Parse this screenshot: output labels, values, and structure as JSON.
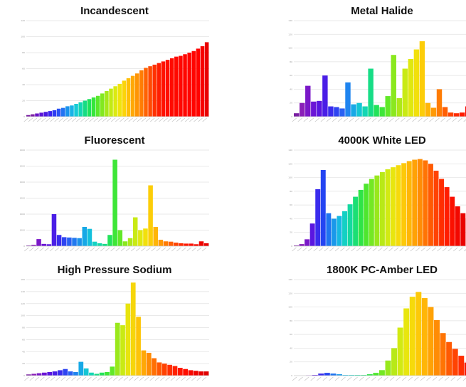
{
  "chart_data": [
    {
      "type": "bar",
      "title": "Incandescent",
      "xlabel": "",
      "ylabel": "",
      "ylim": [
        0,
        120
      ],
      "yticks": [
        "0",
        "20",
        "40",
        "60",
        "80",
        "100",
        "120"
      ],
      "values": [
        2,
        3,
        4,
        5,
        6,
        7,
        8,
        10,
        11,
        13,
        14,
        16,
        18,
        20,
        22,
        24,
        26,
        29,
        32,
        35,
        38,
        41,
        45,
        48,
        51,
        54,
        58,
        61,
        63,
        65,
        67,
        69,
        71,
        73,
        75,
        76,
        78,
        80,
        82,
        85,
        88,
        93
      ],
      "colors": [
        "#7a1fa2",
        "#7a1fa2",
        "#6a12c6",
        "#5a14d6",
        "#4a18e0",
        "#3a24ee",
        "#2e3cf2",
        "#2a52f4",
        "#2373f2",
        "#1a94ec",
        "#17b3e6",
        "#15cbd6",
        "#14d6b3",
        "#16dc84",
        "#1ee35c",
        "#35e63c",
        "#5ae82a",
        "#82e81f",
        "#a6e81a",
        "#c3ea14",
        "#dbea10",
        "#f0e30c",
        "#fbd40a",
        "#ffbf08",
        "#ffa806",
        "#ff9405",
        "#ff7d04",
        "#ff6203",
        "#ff4a02",
        "#ff3201",
        "#ff1e01",
        "#ff1200",
        "#ff0e00",
        "#ff0a00",
        "#ff0800",
        "#ff0700",
        "#ff0600",
        "#ff0500",
        "#ff0400",
        "#ff0300",
        "#f70200",
        "#e80000"
      ],
      "grid": true
    },
    {
      "type": "bar",
      "title": "Metal Halide",
      "xlabel": "",
      "ylabel": "",
      "ylim": [
        0,
        140
      ],
      "yticks": [
        "0",
        "20",
        "40",
        "60",
        "80",
        "100",
        "120",
        "140"
      ],
      "values": [
        5,
        20,
        45,
        22,
        23,
        60,
        15,
        14,
        12,
        50,
        18,
        20,
        15,
        70,
        17,
        14,
        30,
        90,
        27,
        70,
        84,
        98,
        110,
        20,
        13,
        40,
        14,
        6,
        5,
        6,
        15,
        5
      ],
      "colors": [
        "#7a1fa2",
        "#8a1fb8",
        "#7a18c8",
        "#6a14d6",
        "#5a16e0",
        "#4a1ee6",
        "#3a2ced",
        "#2e44f1",
        "#2860f2",
        "#1f84ef",
        "#17a8e6",
        "#14c6d4",
        "#14d6b4",
        "#17dd86",
        "#23e35a",
        "#3ee638",
        "#62e828",
        "#8ae81e",
        "#aee819",
        "#c9ea14",
        "#e0e810",
        "#f2e00c",
        "#fccd09",
        "#ffb507",
        "#ff9905",
        "#ff7c04",
        "#ff5f03",
        "#ff4402",
        "#ff2c01",
        "#ff1a00",
        "#f70c00",
        "#e80000"
      ],
      "grid": true
    },
    {
      "type": "bar",
      "title": "Fluorescent",
      "xlabel": "",
      "ylabel": "",
      "ylim": [
        0,
        30000
      ],
      "yticks": [
        "0",
        "5000",
        "10000",
        "15000",
        "20000",
        "25000",
        "30000"
      ],
      "values": [
        200,
        400,
        2200,
        700,
        600,
        10000,
        3500,
        2800,
        2700,
        2600,
        2500,
        6000,
        5400,
        1400,
        900,
        700,
        3500,
        27000,
        5000,
        1500,
        2500,
        9000,
        5000,
        5500,
        19000,
        6000,
        2000,
        1500,
        1400,
        1100,
        900,
        800,
        800,
        600,
        1500,
        900
      ],
      "colors": [
        "#7a1fa2",
        "#8a1fb8",
        "#7a18c8",
        "#6a14d6",
        "#5a16e0",
        "#4a1ee6",
        "#3a2ced",
        "#2e44f1",
        "#2860f2",
        "#2279ef",
        "#1c92ea",
        "#17a8e6",
        "#14c0dc",
        "#14d2c4",
        "#14d9a6",
        "#17dd86",
        "#23e35a",
        "#3ee638",
        "#62e828",
        "#8ae81e",
        "#aee819",
        "#c9ea14",
        "#e0e810",
        "#f2e00c",
        "#fccd09",
        "#ffb507",
        "#ff9905",
        "#ff7c04",
        "#ff5f03",
        "#ff4402",
        "#ff2c01",
        "#ff1a00",
        "#ff1000",
        "#f70c00",
        "#ee0500",
        "#e80000"
      ],
      "grid": true
    },
    {
      "type": "bar",
      "title": "4000K White LED",
      "xlabel": "",
      "ylabel": "",
      "ylim": [
        0,
        140
      ],
      "yticks": [
        "0",
        "20",
        "40",
        "60",
        "80",
        "100",
        "120",
        "140"
      ],
      "values": [
        1,
        3,
        10,
        33,
        83,
        111,
        48,
        40,
        44,
        51,
        61,
        72,
        82,
        91,
        98,
        103,
        108,
        112,
        115,
        118,
        121,
        124,
        126,
        127,
        125,
        120,
        110,
        98,
        86,
        72,
        58,
        48,
        40,
        30
      ],
      "colors": [
        "#7a1fa2",
        "#8a1fb8",
        "#7a18c8",
        "#5a16e0",
        "#3a2ced",
        "#2444f2",
        "#1f74f0",
        "#1a98ea",
        "#16b8e2",
        "#14d0c4",
        "#15d9a0",
        "#1bdf74",
        "#2fe447",
        "#4ee62e",
        "#74e823",
        "#98e81c",
        "#b8e917",
        "#d2ea12",
        "#e8e60e",
        "#f6da0b",
        "#fdc909",
        "#ffb607",
        "#ffa206",
        "#ff8c05",
        "#ff7404",
        "#ff5a03",
        "#ff4302",
        "#ff2e01",
        "#ff1d00",
        "#fb1000",
        "#f20800",
        "#ea0300",
        "#e40000",
        "#e00000"
      ],
      "grid": true
    },
    {
      "type": "bar",
      "title": "High Pressure Sodium",
      "xlabel": "",
      "ylabel": "",
      "ylim": [
        0,
        160
      ],
      "yticks": [
        "0",
        "20",
        "40",
        "60",
        "80",
        "100",
        "120",
        "140",
        "160"
      ],
      "values": [
        2,
        3,
        4,
        5,
        6,
        7,
        9,
        11,
        7,
        6,
        23,
        12,
        5,
        3,
        5,
        6,
        15,
        88,
        84,
        120,
        155,
        98,
        42,
        38,
        29,
        22,
        20,
        18,
        16,
        13,
        11,
        9,
        8,
        7,
        7
      ],
      "colors": [
        "#7a1fa2",
        "#8a1fb8",
        "#7a18c8",
        "#6a14d6",
        "#5a16e0",
        "#4a1ee6",
        "#3a2ced",
        "#2e44f1",
        "#2860f2",
        "#1f84ef",
        "#17a8e6",
        "#14c6d4",
        "#14d6b4",
        "#17dd86",
        "#23e35a",
        "#3ee638",
        "#62e828",
        "#9ae81c",
        "#c9ea14",
        "#e8e40e",
        "#f6d60b",
        "#fdc409",
        "#ffa806",
        "#ff8c05",
        "#ff7004",
        "#ff5803",
        "#ff4202",
        "#ff3001",
        "#ff2201",
        "#ff1600",
        "#ff0e00",
        "#f70800",
        "#ee0400",
        "#e60000",
        "#e00000"
      ],
      "grid": true
    },
    {
      "type": "bar",
      "title": "1800K PC-Amber LED",
      "xlabel": "",
      "ylabel": "",
      "ylim": [
        0,
        140
      ],
      "yticks": [
        "0",
        "20",
        "40",
        "60",
        "80",
        "100",
        "120",
        "140"
      ],
      "values": [
        0,
        0,
        0.5,
        1,
        3,
        4,
        3,
        2,
        1,
        1,
        1,
        1,
        2,
        4,
        8,
        22,
        40,
        70,
        98,
        115,
        122,
        113,
        100,
        81,
        62,
        49,
        39,
        29,
        19,
        12
      ],
      "colors": [
        "#7a1fa2",
        "#8a1fb8",
        "#7a18c8",
        "#5a16e0",
        "#3a2ced",
        "#2444f2",
        "#1f74f0",
        "#1a98ea",
        "#16b8e2",
        "#14d0c4",
        "#15d9a0",
        "#1bdf74",
        "#2fe447",
        "#4ee62e",
        "#74e823",
        "#98e81c",
        "#b8e917",
        "#d2ea12",
        "#e8e60e",
        "#f6da0b",
        "#fdc909",
        "#ffb607",
        "#ffa206",
        "#ff8c05",
        "#ff7404",
        "#ff5a03",
        "#ff4302",
        "#ff2e01",
        "#f61600",
        "#e80000"
      ],
      "grid": true
    }
  ]
}
